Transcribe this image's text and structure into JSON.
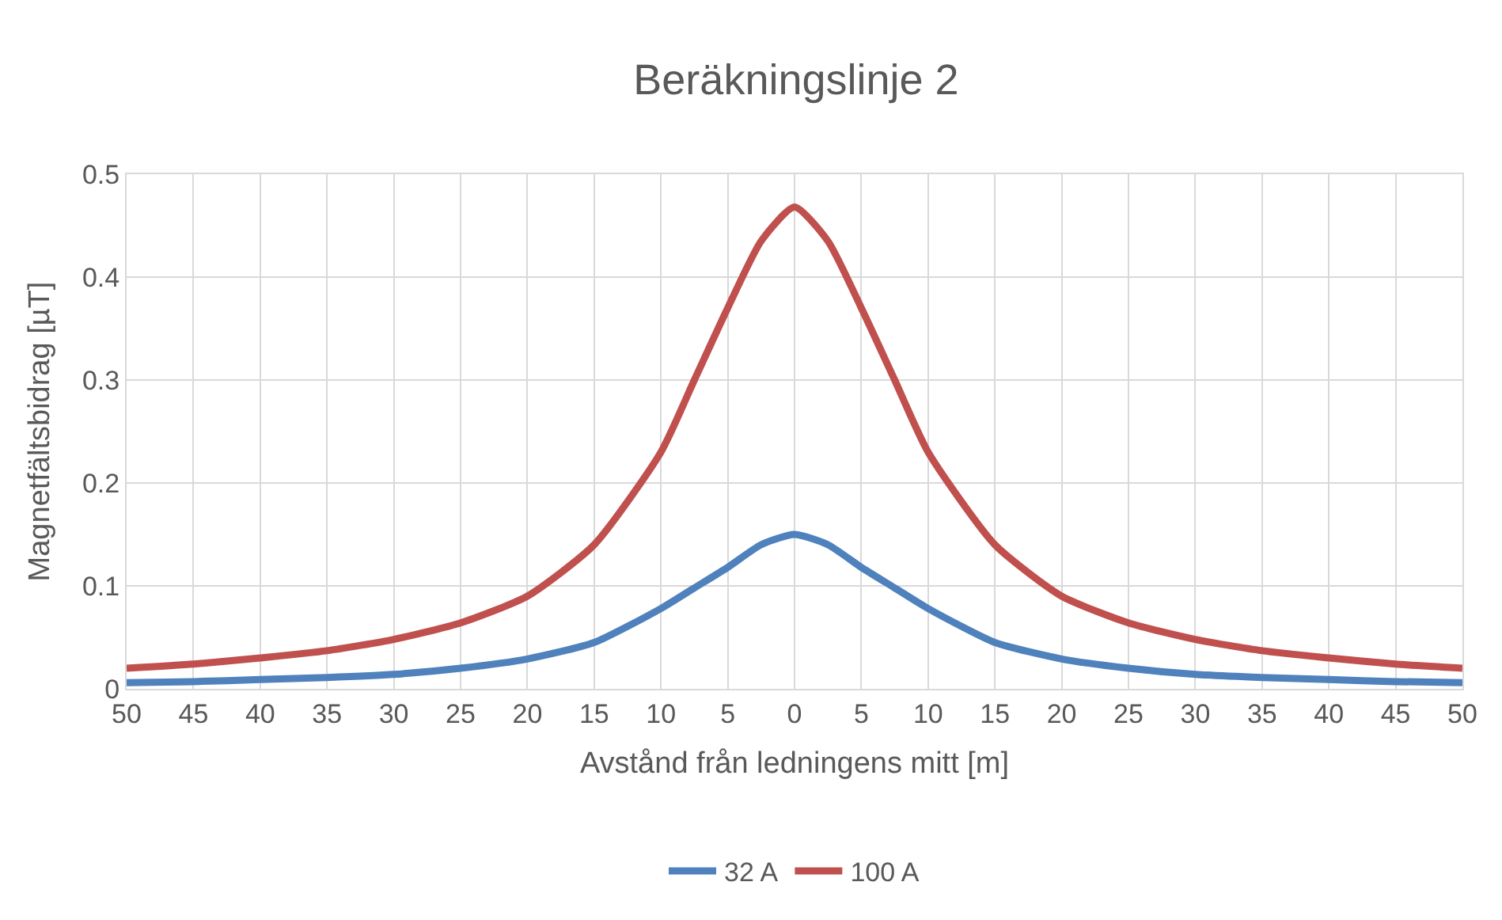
{
  "chart_data": {
    "type": "line",
    "title": "Beräkningslinje 2",
    "xlabel": "Avstånd från ledningens mitt [m]",
    "ylabel": "Magnetfältsbidrag [µT]",
    "x": [
      -50,
      -45,
      -40,
      -35,
      -30,
      -25,
      -20,
      -15,
      -10,
      -7.5,
      -5,
      -2.5,
      0,
      2.5,
      5,
      7.5,
      10,
      15,
      20,
      25,
      30,
      35,
      40,
      45,
      50
    ],
    "series": [
      {
        "name": "32 A",
        "color": "#4f81bd",
        "values": [
          0.006,
          0.007,
          0.009,
          0.011,
          0.014,
          0.02,
          0.029,
          0.045,
          0.078,
          0.098,
          0.118,
          0.14,
          0.15,
          0.14,
          0.118,
          0.098,
          0.078,
          0.045,
          0.029,
          0.02,
          0.014,
          0.011,
          0.009,
          0.007,
          0.006
        ]
      },
      {
        "name": "100 A",
        "color": "#c0504d",
        "values": [
          0.02,
          0.024,
          0.03,
          0.037,
          0.048,
          0.064,
          0.09,
          0.14,
          0.23,
          0.3,
          0.37,
          0.435,
          0.468,
          0.435,
          0.37,
          0.3,
          0.23,
          0.14,
          0.09,
          0.064,
          0.048,
          0.037,
          0.03,
          0.024,
          0.02
        ]
      }
    ],
    "xlim": [
      -50,
      50
    ],
    "xticks": [
      {
        "value": -50,
        "label": "50"
      },
      {
        "value": -45,
        "label": "45"
      },
      {
        "value": -40,
        "label": "40"
      },
      {
        "value": -35,
        "label": "35"
      },
      {
        "value": -30,
        "label": "30"
      },
      {
        "value": -25,
        "label": "25"
      },
      {
        "value": -20,
        "label": "20"
      },
      {
        "value": -15,
        "label": "15"
      },
      {
        "value": -10,
        "label": "10"
      },
      {
        "value": -5,
        "label": "5"
      },
      0,
      5,
      10,
      15,
      20,
      25,
      30,
      35,
      40,
      45,
      50
    ],
    "ylim": [
      0,
      0.5
    ],
    "yticks": [
      0,
      0.1,
      0.2,
      0.3,
      0.4,
      0.5
    ],
    "grid": true,
    "legend": "bottom",
    "marker": "none",
    "line_style": "solid"
  }
}
